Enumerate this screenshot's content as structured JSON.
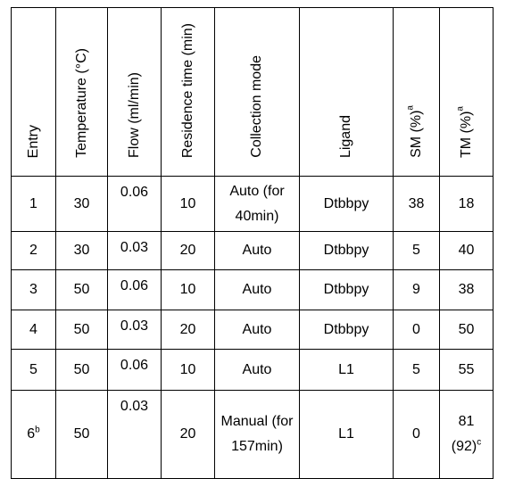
{
  "table": {
    "headers": [
      {
        "text": "Entry"
      },
      {
        "text": "Temperature (°C)"
      },
      {
        "text": "Flow (ml/min)"
      },
      {
        "text": "Residence time (min)"
      },
      {
        "text": "Collection mode"
      },
      {
        "text": "Ligand"
      },
      {
        "text": "SM (%)",
        "sup": "a"
      },
      {
        "text": "TM (%)",
        "sup": "a"
      }
    ],
    "rows": [
      [
        {
          "text": "1"
        },
        {
          "text": "30"
        },
        {
          "text": "0.06"
        },
        {
          "text": "10"
        },
        {
          "text": "Auto (for 40min)"
        },
        {
          "text": "Dtbbpy"
        },
        {
          "text": "38"
        },
        {
          "text": "18"
        }
      ],
      [
        {
          "text": "2"
        },
        {
          "text": "30"
        },
        {
          "text": "0.03"
        },
        {
          "text": "20"
        },
        {
          "text": "Auto"
        },
        {
          "text": "Dtbbpy"
        },
        {
          "text": "5"
        },
        {
          "text": "40"
        }
      ],
      [
        {
          "text": "3"
        },
        {
          "text": "50"
        },
        {
          "text": "0.06"
        },
        {
          "text": "10"
        },
        {
          "text": "Auto"
        },
        {
          "text": "Dtbbpy"
        },
        {
          "text": "9"
        },
        {
          "text": "38"
        }
      ],
      [
        {
          "text": "4"
        },
        {
          "text": "50"
        },
        {
          "text": "0.03"
        },
        {
          "text": "20"
        },
        {
          "text": "Auto"
        },
        {
          "text": "Dtbbpy"
        },
        {
          "text": "0"
        },
        {
          "text": "50"
        }
      ],
      [
        {
          "text": "5"
        },
        {
          "text": "50"
        },
        {
          "text": "0.06"
        },
        {
          "text": "10"
        },
        {
          "text": "Auto"
        },
        {
          "text": "L1"
        },
        {
          "text": "5"
        },
        {
          "text": "55"
        }
      ],
      [
        {
          "text": "6",
          "sup": "b"
        },
        {
          "text": "50"
        },
        {
          "text": "0.03"
        },
        {
          "text": "20"
        },
        {
          "text": "Manual (for 157min)"
        },
        {
          "text": "L1"
        },
        {
          "text": "0"
        },
        {
          "text": "81 (92)",
          "sup": "c"
        }
      ]
    ]
  }
}
